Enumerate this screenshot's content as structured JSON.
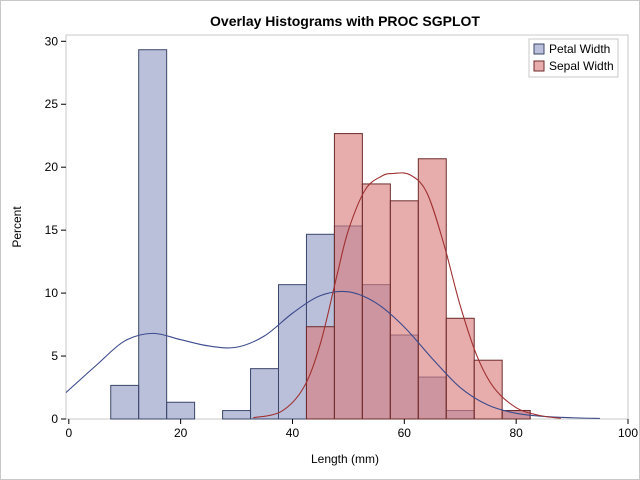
{
  "chart_data": {
    "type": "histogram",
    "title": "Overlay Histograms with PROC SGPLOT",
    "xlabel": "Length (mm)",
    "ylabel": "Percent",
    "xlim": [
      -0.5,
      100
    ],
    "ylim": [
      0,
      30.5
    ],
    "xticks": [
      0,
      20,
      40,
      60,
      80,
      100
    ],
    "yticks": [
      0,
      5,
      10,
      15,
      20,
      25,
      30
    ],
    "legend_position": "top-right",
    "bin_width": 5,
    "series": [
      {
        "name": "Petal Width",
        "color": "#8f9ac4",
        "edge": "#3b466b",
        "bins": [
          {
            "center": 10,
            "value": 2.67
          },
          {
            "center": 15,
            "value": 29.33
          },
          {
            "center": 20,
            "value": 1.33
          },
          {
            "center": 25,
            "value": 0
          },
          {
            "center": 30,
            "value": 0.67
          },
          {
            "center": 35,
            "value": 4.0
          },
          {
            "center": 40,
            "value": 10.67
          },
          {
            "center": 45,
            "value": 14.67
          },
          {
            "center": 50,
            "value": 15.33
          },
          {
            "center": 55,
            "value": 10.67
          },
          {
            "center": 60,
            "value": 6.67
          },
          {
            "center": 65,
            "value": 3.33
          },
          {
            "center": 70,
            "value": 0.67
          },
          {
            "center": 75,
            "value": 0
          },
          {
            "center": 80,
            "value": 0.67
          }
        ],
        "density_curve": {
          "color": "#3b4a8c",
          "x": [
            -0.5,
            5,
            10,
            15,
            20,
            25,
            30,
            35,
            40,
            45,
            50,
            55,
            60,
            65,
            70,
            75,
            80,
            85,
            90,
            95
          ],
          "y": [
            2.1,
            4.3,
            6.2,
            6.8,
            6.3,
            5.8,
            5.7,
            6.6,
            8.4,
            9.8,
            10.1,
            9.2,
            7.3,
            4.8,
            2.5,
            1.1,
            0.45,
            0.2,
            0.1,
            0.05
          ]
        }
      },
      {
        "name": "Sepal Width",
        "color": "#d97a7a",
        "edge": "#6e2a2a",
        "bins": [
          {
            "center": 45,
            "value": 7.33
          },
          {
            "center": 50,
            "value": 22.67
          },
          {
            "center": 55,
            "value": 18.67
          },
          {
            "center": 60,
            "value": 17.33
          },
          {
            "center": 65,
            "value": 20.67
          },
          {
            "center": 70,
            "value": 8.0
          },
          {
            "center": 75,
            "value": 4.67
          },
          {
            "center": 80,
            "value": 0.67
          }
        ],
        "density_curve": {
          "color": "#a03030",
          "x": [
            33,
            38,
            42,
            45,
            48,
            50,
            53,
            56,
            58,
            61,
            64,
            67,
            70,
            73,
            76,
            80,
            84,
            88
          ],
          "y": [
            0.1,
            0.6,
            2.5,
            6.0,
            11.5,
            15.0,
            18.2,
            19.3,
            19.5,
            19.4,
            18.0,
            14.0,
            9.0,
            5.0,
            2.5,
            0.9,
            0.3,
            0.05
          ]
        }
      }
    ]
  }
}
